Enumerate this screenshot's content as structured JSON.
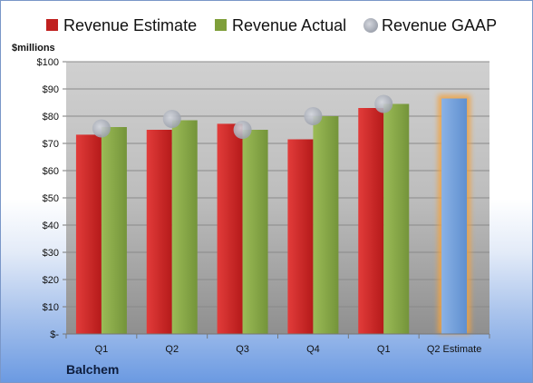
{
  "chart_data": {
    "type": "bar",
    "y_unit_label": "$millions",
    "categories": [
      "Q1",
      "Q2",
      "Q3",
      "Q4",
      "Q1",
      "Q2 Estimate"
    ],
    "ylim": [
      0,
      100
    ],
    "y_ticks": [
      0,
      10,
      20,
      30,
      40,
      50,
      60,
      70,
      80,
      90,
      100
    ],
    "y_tick_labels": [
      "$-",
      "$10",
      "$20",
      "$30",
      "$40",
      "$50",
      "$60",
      "$70",
      "$80",
      "$90",
      "$100"
    ],
    "grid": true,
    "legend_position": "top",
    "series": [
      {
        "name": "Revenue Estimate",
        "kind": "bar",
        "color": "#c0201f",
        "values": [
          73.2,
          75.0,
          77.2,
          71.5,
          83.0,
          null
        ]
      },
      {
        "name": "Revenue Actual",
        "kind": "bar",
        "color": "#7f9f3a",
        "values": [
          76.0,
          78.5,
          75.0,
          80.0,
          84.5,
          86.5
        ]
      },
      {
        "name": "Revenue GAAP",
        "kind": "marker",
        "color": "#b8bcc6",
        "values": [
          75.5,
          79.0,
          75.0,
          80.0,
          84.5,
          null
        ]
      }
    ],
    "highlight": {
      "category_index": 5,
      "bar_color": "#6f9fd8",
      "glow_color": "#f0a342"
    },
    "company": "Balchem"
  }
}
